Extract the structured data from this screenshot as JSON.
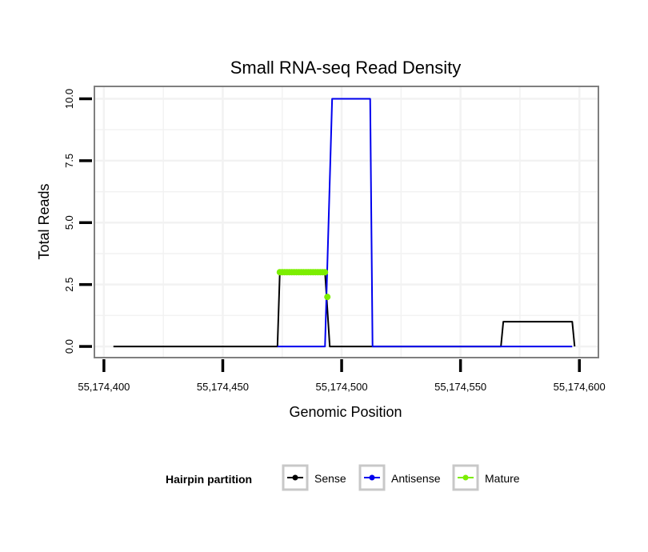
{
  "chart_data": {
    "type": "line",
    "title": "Small RNA-seq Read Density",
    "xlabel": "Genomic Position",
    "ylabel": "Total Reads",
    "xlim": [
      55174396,
      55174608
    ],
    "ylim": [
      -0.45,
      10.5
    ],
    "x_ticks": [
      {
        "value": 55174400,
        "label": "55,174,400"
      },
      {
        "value": 55174450,
        "label": "55,174,450"
      },
      {
        "value": 55174500,
        "label": "55,174,500"
      },
      {
        "value": 55174550,
        "label": "55,174,550"
      },
      {
        "value": 55174600,
        "label": "55,174,600"
      }
    ],
    "y_ticks": [
      {
        "value": 0,
        "label": "0.0"
      },
      {
        "value": 2.5,
        "label": "2.5"
      },
      {
        "value": 5,
        "label": "5.0"
      },
      {
        "value": 7.5,
        "label": "7.5"
      },
      {
        "value": 10,
        "label": "10.0"
      }
    ],
    "grid": true,
    "legend": {
      "title": "Hairpin partition",
      "position": "bottom"
    },
    "series": [
      {
        "name": "Sense",
        "color": "#000000",
        "points": [
          [
            55174404,
            0
          ],
          [
            55174473,
            0
          ],
          [
            55174474,
            3
          ],
          [
            55174493,
            3
          ],
          [
            55174495,
            0
          ],
          [
            55174567,
            0
          ],
          [
            55174568,
            1
          ],
          [
            55174597,
            1
          ],
          [
            55174598,
            0
          ]
        ]
      },
      {
        "name": "Antisense",
        "color": "#0000ee",
        "points": [
          [
            55174473,
            0
          ],
          [
            55174493,
            0
          ],
          [
            55174496,
            10
          ],
          [
            55174512,
            10
          ],
          [
            55174513,
            0
          ],
          [
            55174597,
            0
          ]
        ]
      },
      {
        "name": "Mature",
        "color": "#7cee00",
        "points": [
          [
            55174474,
            3
          ],
          [
            55174475,
            3
          ],
          [
            55174476,
            3
          ],
          [
            55174477,
            3
          ],
          [
            55174478,
            3
          ],
          [
            55174479,
            3
          ],
          [
            55174480,
            3
          ],
          [
            55174481,
            3
          ],
          [
            55174482,
            3
          ],
          [
            55174483,
            3
          ],
          [
            55174484,
            3
          ],
          [
            55174485,
            3
          ],
          [
            55174486,
            3
          ],
          [
            55174487,
            3
          ],
          [
            55174488,
            3
          ],
          [
            55174489,
            3
          ],
          [
            55174490,
            3
          ],
          [
            55174491,
            3
          ],
          [
            55174492,
            3
          ],
          [
            55174493,
            3
          ],
          [
            55174494,
            2
          ]
        ],
        "line_points": 20
      }
    ]
  }
}
